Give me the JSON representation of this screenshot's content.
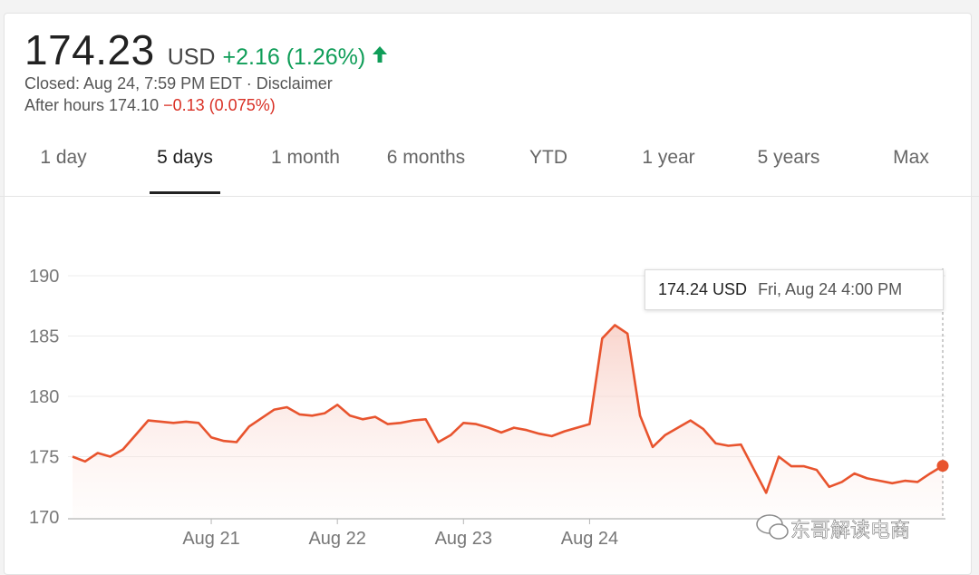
{
  "quote": {
    "price": "174.23",
    "currency": "USD",
    "change": "+2.16 (1.26%)",
    "closed": "Closed: Aug 24, 7:59 PM EDT · Disclaimer",
    "after_hours_label": "After hours 174.10",
    "after_hours_change": "−0.13 (0.075%)"
  },
  "tabs": [
    {
      "label": "1 day"
    },
    {
      "label": "5 days"
    },
    {
      "label": "1 month"
    },
    {
      "label": "6 months"
    },
    {
      "label": "YTD"
    },
    {
      "label": "1 year"
    },
    {
      "label": "5 years"
    },
    {
      "label": "Max"
    }
  ],
  "active_tab": "5 days",
  "tooltip": {
    "value": "174.24 USD",
    "date": "Fri, Aug 24 4:00 PM"
  },
  "watermark": "东哥解读电商",
  "colors": {
    "line": "#e8542e",
    "positive": "#0f9d58",
    "negative": "#d93025",
    "fill": "#fde7e3"
  },
  "chart_data": {
    "type": "line",
    "yticks": [
      170,
      175,
      180,
      185,
      190
    ],
    "ylim": [
      170,
      190
    ],
    "xtick_labels": [
      "Aug 21",
      "Aug 22",
      "Aug 23",
      "Aug 24"
    ],
    "xtick_positions": [
      11,
      21,
      31,
      41
    ],
    "values": [
      175.0,
      174.6,
      175.3,
      175.0,
      175.6,
      176.8,
      178.0,
      177.9,
      177.8,
      177.9,
      177.8,
      176.6,
      176.3,
      176.2,
      177.5,
      178.2,
      178.9,
      179.1,
      178.5,
      178.4,
      178.6,
      179.3,
      178.4,
      178.1,
      178.3,
      177.7,
      177.8,
      178.0,
      178.1,
      176.2,
      176.8,
      177.8,
      177.7,
      177.4,
      177.0,
      177.4,
      177.2,
      176.9,
      176.7,
      177.1,
      177.4,
      177.7,
      184.8,
      185.9,
      185.2,
      178.4,
      175.8,
      176.8,
      177.4,
      178.0,
      177.3,
      176.1,
      175.9,
      176.0,
      174.0,
      172.0,
      175.0,
      174.2,
      174.2,
      173.9,
      172.5,
      172.9,
      173.6,
      173.2,
      173.0,
      172.8,
      173.0,
      172.9,
      173.6,
      174.24
    ],
    "last_point_label": "174.24 USD"
  }
}
